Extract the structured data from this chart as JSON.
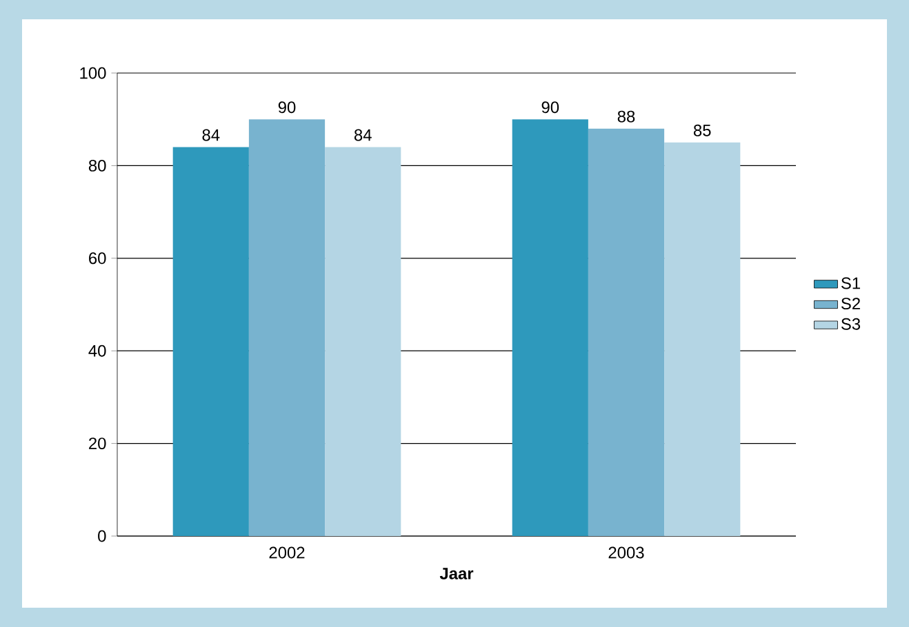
{
  "chart_data": {
    "type": "bar",
    "xlabel": "Jaar",
    "categories": [
      "2002",
      "2003"
    ],
    "series": [
      {
        "name": "S1",
        "color": "#2e99bc",
        "values": [
          84,
          90
        ]
      },
      {
        "name": "S2",
        "color": "#78b3cf",
        "values": [
          90,
          88
        ]
      },
      {
        "name": "S3",
        "color": "#b4d5e4",
        "values": [
          84,
          85
        ]
      }
    ],
    "ylim": [
      0,
      100
    ],
    "yticks": [
      0,
      20,
      40,
      60,
      80,
      100
    ],
    "grid": "y",
    "legend": "right",
    "data_labels": true
  }
}
